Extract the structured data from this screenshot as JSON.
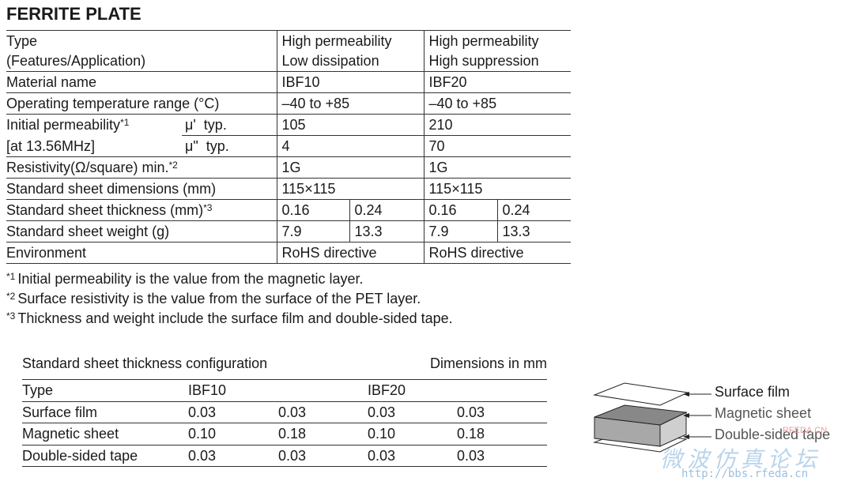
{
  "title": "FERRITE PLATE",
  "spec_table": {
    "rows": [
      {
        "label": [
          "Type",
          "(Features/Application)"
        ],
        "values": [
          [
            "High permeability",
            "Low dissipation"
          ],
          [
            "High permeability",
            "High suppression"
          ]
        ]
      },
      {
        "label": "Material name",
        "values": [
          "IBF10",
          "IBF20"
        ]
      },
      {
        "label": "Operating temperature range (°C)",
        "values": [
          "–40 to +85",
          "–40 to +85"
        ]
      },
      {
        "label": "Initial permeability",
        "note": "*1",
        "sub": "μ'  typ.",
        "values": [
          "105",
          "210"
        ]
      },
      {
        "label": "[at 13.56MHz]",
        "sub": "μ\"  typ.",
        "values": [
          "4",
          "70"
        ]
      },
      {
        "label": "Resistivity(Ω/square) min.",
        "note": "*2",
        "values": [
          "1G",
          "1G"
        ]
      },
      {
        "label": "Standard sheet dimensions (mm)",
        "values": [
          "115×115",
          "115×115"
        ]
      },
      {
        "label": "Standard sheet thickness (mm)",
        "note": "*3",
        "values": [
          "0.16",
          "0.24",
          "0.16",
          "0.24"
        ]
      },
      {
        "label": "Standard sheet weight (g)",
        "values": [
          "7.9",
          "13.3",
          "7.9",
          "13.3"
        ]
      },
      {
        "label": "Environment",
        "values": [
          "RoHS directive",
          "RoHS directive"
        ]
      }
    ]
  },
  "footnotes": [
    {
      "mark": "*1",
      "text": "Initial permeability is the value from the magnetic layer."
    },
    {
      "mark": "*2",
      "text": "Surface resistivity is the value from the surface of the PET layer."
    },
    {
      "mark": "*3",
      "text": "Thickness and weight include the surface film and double-sided tape."
    }
  ],
  "config_table": {
    "caption": "Standard sheet thickness configuration",
    "units": "Dimensions in mm",
    "header": [
      "Type",
      "IBF10",
      "IBF20"
    ],
    "rows": [
      [
        "Surface film",
        "0.03",
        "0.03",
        "0.03",
        "0.03"
      ],
      [
        "Magnetic sheet",
        "0.10",
        "0.18",
        "0.10",
        "0.18"
      ],
      [
        "Double-sided tape",
        "0.03",
        "0.03",
        "0.03",
        "0.03"
      ]
    ]
  },
  "diagram": {
    "labels": [
      "Surface film",
      "Magnetic sheet",
      "Double-sided tape"
    ]
  },
  "watermark": {
    "site": "RFEDA.CN",
    "text": "微波仿真论坛",
    "url": "http://bbs.rfeda.cn"
  }
}
